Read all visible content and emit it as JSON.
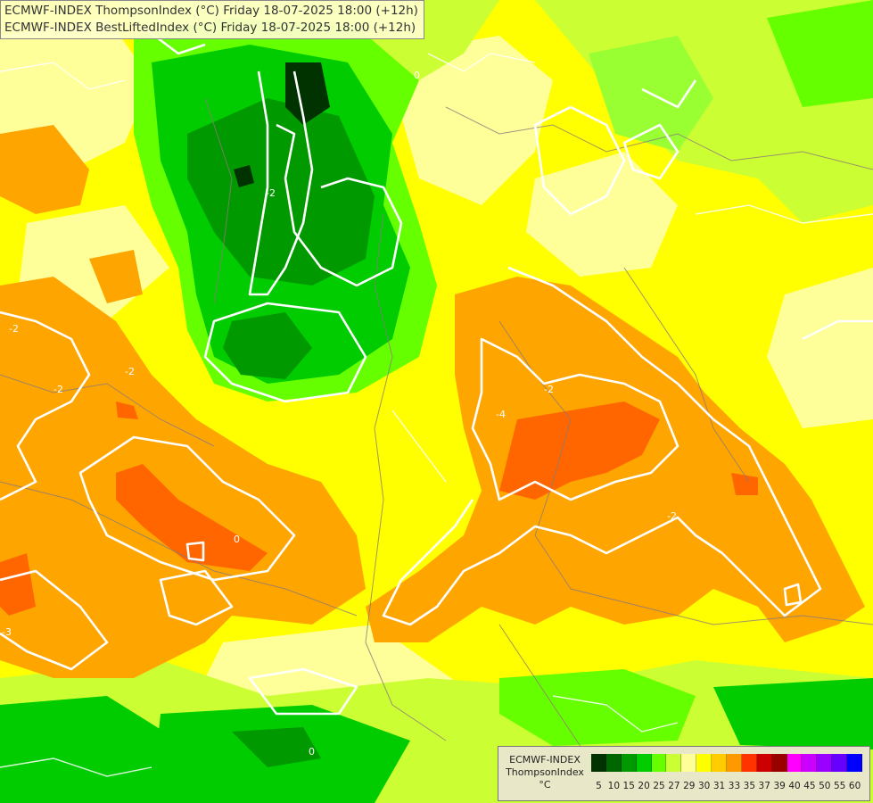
{
  "titles": [
    "ECMWF-INDEX ThompsonIndex (°C) Friday 18-07-2025 18:00 (+12h)",
    "ECMWF-INDEX BestLiftedIndex (°C) Friday 18-07-2025 18:00 (+12h)"
  ],
  "legend": {
    "model": "ECMWF-INDEX",
    "parameter": "ThompsonIndex",
    "unit": "°C",
    "ticks": [
      "5",
      "10",
      "15",
      "20",
      "25",
      "27",
      "29",
      "30",
      "31",
      "33",
      "35",
      "37",
      "39",
      "40",
      "45",
      "50",
      "55",
      "60"
    ],
    "colors": [
      "#000000",
      "#000000",
      "#0a0a0a",
      "#003300",
      "#006600",
      "#009900",
      "#00cc00",
      "#66ff00",
      "#ccff33",
      "#ffff99",
      "#ffff00",
      "#ffcc00",
      "#ff9900",
      "#ff3300",
      "#cc0000",
      "#990000",
      "#ff00ff",
      "#cc00ff",
      "#9900ff",
      "#6600ff",
      "#0000ff"
    ]
  },
  "contour_labels": [
    "-2",
    "0",
    "-2",
    "-2",
    "-2",
    "-2",
    "-4",
    "0",
    "-2",
    "-3",
    "0"
  ],
  "colors": {
    "yellow": "#ffff00",
    "light_yellow": "#ffff99",
    "lime": "#ccff33",
    "green": "#00cc00",
    "dark_green": "#006600",
    "orange": "#ffa500",
    "red_orange": "#ff6600"
  }
}
